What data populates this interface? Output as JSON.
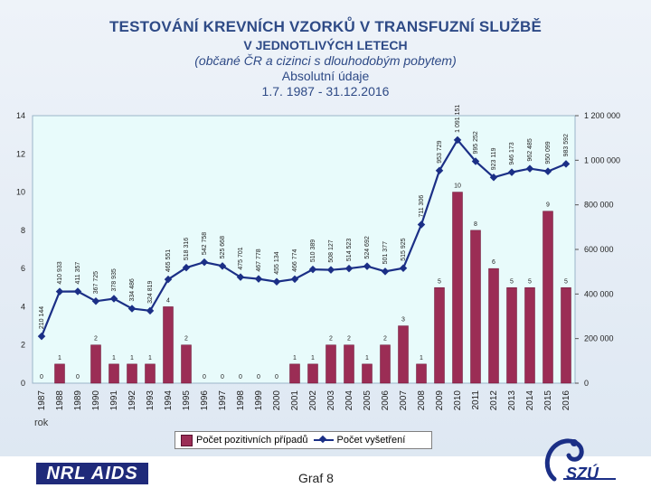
{
  "header": {
    "title": "TESTOVÁNÍ KREVNÍCH VZORKŮ V TRANSFUZNÍ SLUŽBĚ",
    "subtitle": "V JEDNOTLIVÝCH LETECH",
    "population": "(občané ČR a cizinci s dlouhodobým pobytem)",
    "units": "Absolutní údaje",
    "period": "1.7. 1987 - 31.12.2016"
  },
  "footer": {
    "left_logo_text": "NRL AIDS",
    "center_text": "Graf 8",
    "right_logo_text": "SZÚ"
  },
  "colors": {
    "bar": "#9b2d55",
    "line": "#1b2f86",
    "plot_background": "#e8fbfb"
  },
  "chart_data": {
    "type": "bar",
    "xlabel": "rok",
    "categories": [
      "1987",
      "1988",
      "1989",
      "1990",
      "1991",
      "1992",
      "1993",
      "1994",
      "1995",
      "1996",
      "1997",
      "1998",
      "1999",
      "2000",
      "2001",
      "2002",
      "2003",
      "2004",
      "2005",
      "2006",
      "2007",
      "2008",
      "2009",
      "2010",
      "2011",
      "2012",
      "2013",
      "2014",
      "2015",
      "2016"
    ],
    "series": [
      {
        "name": "Počet pozitivních případů",
        "type": "bar",
        "axis": "left",
        "values": [
          0,
          1,
          0,
          2,
          1,
          1,
          1,
          4,
          2,
          0,
          0,
          0,
          0,
          0,
          1,
          1,
          2,
          2,
          1,
          2,
          3,
          1,
          5,
          10,
          8,
          6,
          5,
          5,
          9,
          5
        ],
        "labels": [
          "0",
          "1",
          "0",
          "2",
          "1",
          "1",
          "1",
          "4",
          "2",
          "0",
          "0",
          "0",
          "0",
          "0",
          "1",
          "1",
          "2",
          "2",
          "1",
          "2",
          "3",
          "1",
          "5",
          "10",
          "8",
          "6",
          "5",
          "5",
          "9",
          "5"
        ]
      },
      {
        "name": "Počet vyšetření",
        "type": "line",
        "axis": "right",
        "values": [
          210144,
          410933,
          411357,
          367725,
          378935,
          334486,
          324819,
          465551,
          518316,
          542758,
          525668,
          475701,
          467778,
          455134,
          466774,
          510389,
          508127,
          514523,
          524692,
          501377,
          515925,
          711306,
          953729,
          1091151,
          995252,
          923119,
          946173,
          962485,
          950099,
          983592
        ],
        "labels": [
          "210 144",
          "410 933",
          "411 357",
          "367 725",
          "378 935",
          "334 486",
          "324 819",
          "465 551",
          "518 316",
          "542 758",
          "525 668",
          "475 701",
          "467 778",
          "455 134",
          "466 774",
          "510 389",
          "508 127",
          "514 523",
          "524 692",
          "501 377",
          "515 925",
          "711 306",
          "953 729",
          "1 091 151",
          "995 252",
          "923 119",
          "946 173",
          "962 485",
          "950 099",
          "983 592"
        ]
      }
    ],
    "y_left": {
      "min": 0,
      "max": 14,
      "ticks": [
        "0",
        "2",
        "4",
        "6",
        "8",
        "10",
        "12",
        "14"
      ]
    },
    "y_right": {
      "min": 0,
      "max": 1200000,
      "ticks": [
        "0",
        "200 000",
        "400 000",
        "600 000",
        "800 000",
        "1 000 000",
        "1 200 000"
      ]
    },
    "grid": false,
    "legend": "bottom"
  }
}
